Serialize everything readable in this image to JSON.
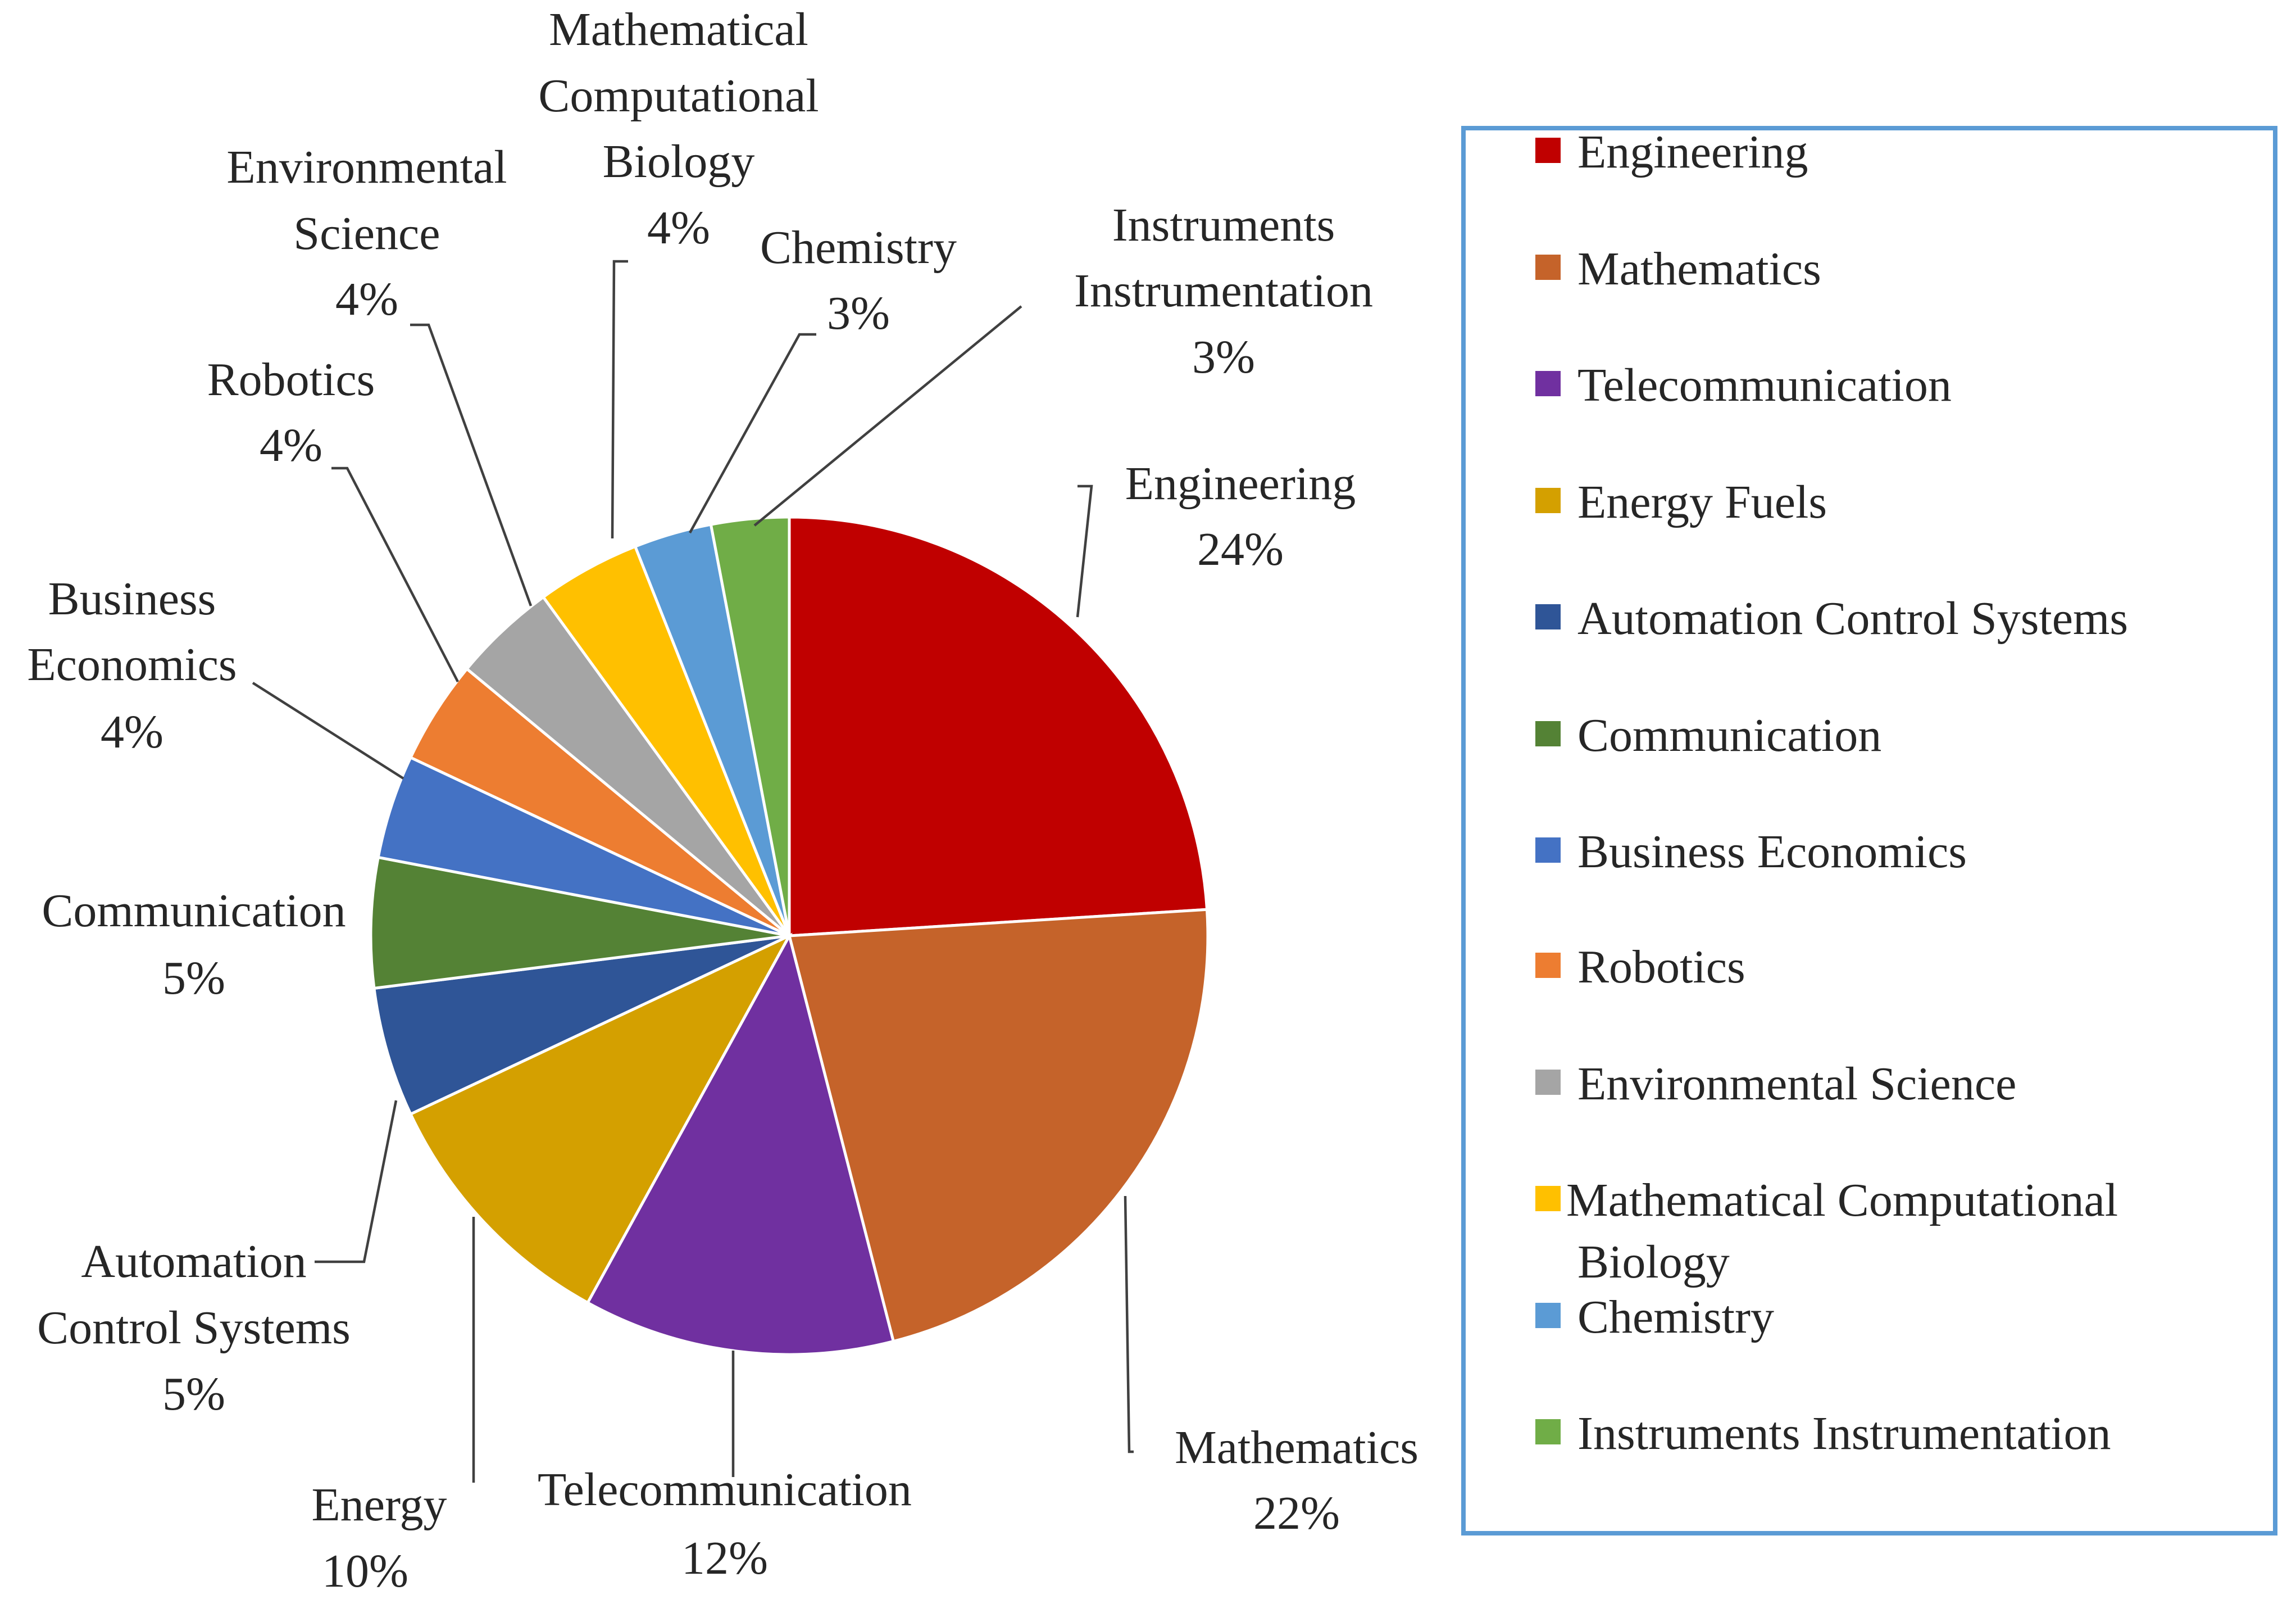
{
  "chart_data": {
    "type": "pie",
    "title": "",
    "legend_position": "right",
    "slices": [
      {
        "label": "Engineering",
        "value": 24,
        "value_label": "24%",
        "color": "#c00000"
      },
      {
        "label": "Mathematics",
        "value": 22,
        "value_label": "22%",
        "color": "#c5632a"
      },
      {
        "label": "Telecommunication",
        "value": 12,
        "value_label": "12%",
        "color": "#7030a0"
      },
      {
        "label": "Energy Fuels",
        "value": 10,
        "value_label": "10%",
        "color": "#d4a000"
      },
      {
        "label": "Automation Control Systems",
        "value": 5,
        "value_label": "5%",
        "color": "#2f5597"
      },
      {
        "label": "Communication",
        "value": 5,
        "value_label": "5%",
        "color": "#548235"
      },
      {
        "label": "Business Economics",
        "value": 4,
        "value_label": "4%",
        "color": "#4472c4"
      },
      {
        "label": "Robotics",
        "value": 4,
        "value_label": "4%",
        "color": "#ed7d31"
      },
      {
        "label": "Environmental Science",
        "value": 4,
        "value_label": "4%",
        "color": "#a5a5a5"
      },
      {
        "label": "Mathematical Computational Biology",
        "value": 4,
        "value_label": "4%",
        "color": "#ffc000"
      },
      {
        "label": "Chemistry",
        "value": 3,
        "value_label": "3%",
        "color": "#5b9bd5"
      },
      {
        "label": "Instruments Instrumentation",
        "value": 3,
        "value_label": "3%",
        "color": "#70ad47"
      }
    ]
  }
}
